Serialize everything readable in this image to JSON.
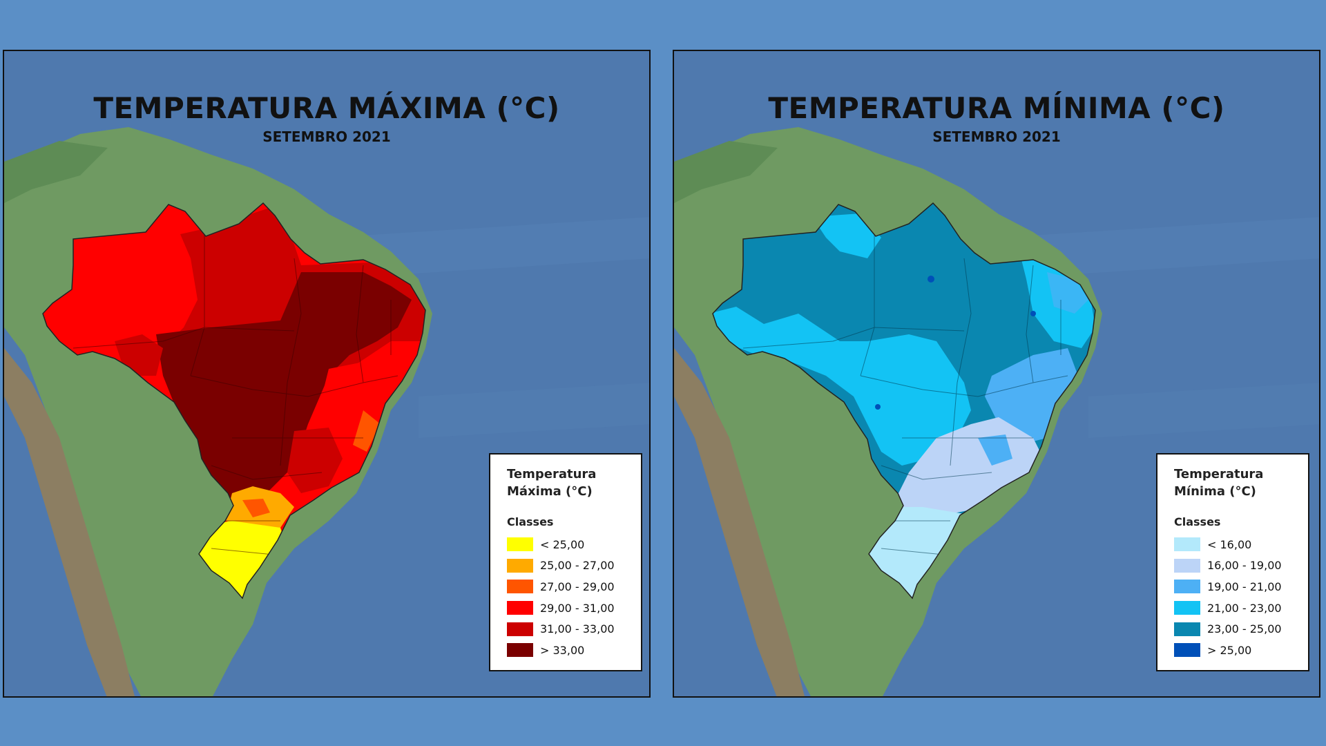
{
  "panels": [
    {
      "title": "TEMPERATURA MÁXIMA (°C)",
      "subtitle": "SETEMBRO 2021",
      "legend": {
        "title_line1": "Temperatura",
        "title_line2": "Máxima (°C)",
        "subtitle": "Classes",
        "classes": [
          {
            "label": "< 25,00",
            "color": "#ffff00"
          },
          {
            "label": "25,00 - 27,00",
            "color": "#ffaa00"
          },
          {
            "label": "27,00 - 29,00",
            "color": "#ff5500"
          },
          {
            "label": "29,00 - 31,00",
            "color": "#ff0000"
          },
          {
            "label": "31,00 - 33,00",
            "color": "#cc0000"
          },
          {
            "label": "> 33,00",
            "color": "#7a0000"
          }
        ]
      }
    },
    {
      "title": "TEMPERATURA MÍNIMA (°C)",
      "subtitle": "SETEMBRO 2021",
      "legend": {
        "title_line1": "Temperatura",
        "title_line2": "Mínima (°C)",
        "subtitle": "Classes",
        "classes": [
          {
            "label": "< 16,00",
            "color": "#b3e9fb"
          },
          {
            "label": "16,00 - 19,00",
            "color": "#bcd4f7"
          },
          {
            "label": "19,00 - 21,00",
            "color": "#4db0f5"
          },
          {
            "label": "21,00 - 23,00",
            "color": "#13c3f4"
          },
          {
            "label": "23,00 - 25,00",
            "color": "#0a87b0"
          },
          {
            "label": "> 25,00",
            "color": "#0050b8"
          }
        ]
      }
    }
  ]
}
